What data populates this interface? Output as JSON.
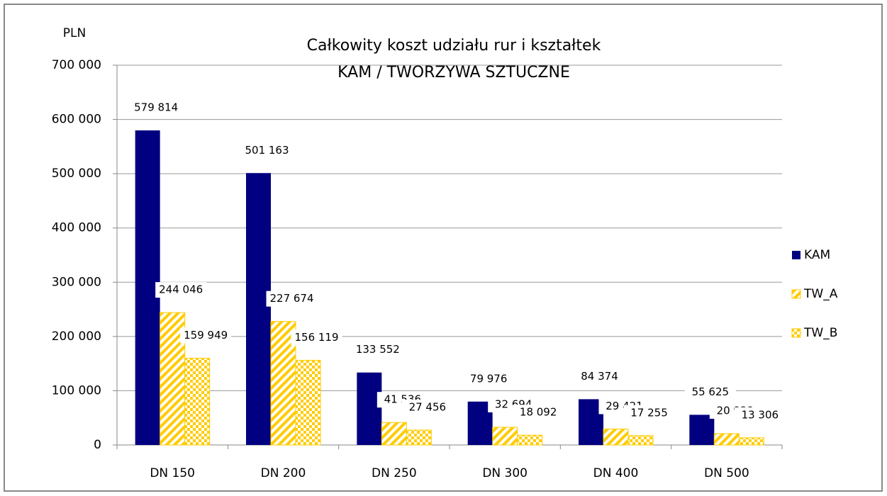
{
  "chart_data": {
    "type": "bar",
    "title": "Całkowity koszt udziału rur i kształtek",
    "subtitle": "KAM / TWORZYWA SZTUCZNE",
    "y_label": "PLN",
    "categories": [
      "DN 150",
      "DN 200",
      "DN 250",
      "DN 300",
      "DN 400",
      "DN 500"
    ],
    "series": [
      {
        "name": "KAM",
        "color": "#000080",
        "values": [
          579814,
          501163,
          133552,
          79976,
          84374,
          55625
        ],
        "value_labels": [
          "579 814",
          "501 163",
          "133 552",
          "79 976",
          "84 374",
          "55 625"
        ]
      },
      {
        "name": "TW_A",
        "color": "#ffcc00",
        "values": [
          244046,
          227674,
          41536,
          32694,
          29421,
          20929
        ],
        "value_labels": [
          "244 046",
          "227 674",
          "41 536",
          "32 694",
          "29 421",
          "20 929"
        ]
      },
      {
        "name": "TW_B",
        "color": "#ffcc00",
        "values": [
          159949,
          156119,
          27456,
          18092,
          17255,
          13306
        ],
        "value_labels": [
          "159 949",
          "156 119",
          "27 456",
          "18 092",
          "17 255",
          "13 306"
        ]
      }
    ],
    "ylim": [
      0,
      700000
    ],
    "yticks": [
      0,
      {
        "value": 100000,
        "label": "100 000"
      },
      {
        "value": 200000,
        "label": "200 000"
      },
      {
        "value": 300000,
        "label": "300 000"
      },
      {
        "value": 400000,
        "label": "400 000"
      },
      {
        "value": 500000,
        "label": "500 000"
      },
      {
        "value": 600000,
        "label": "600 000"
      },
      {
        "value": 700000,
        "label": "700 000"
      }
    ],
    "grid": true,
    "legend": "right"
  }
}
